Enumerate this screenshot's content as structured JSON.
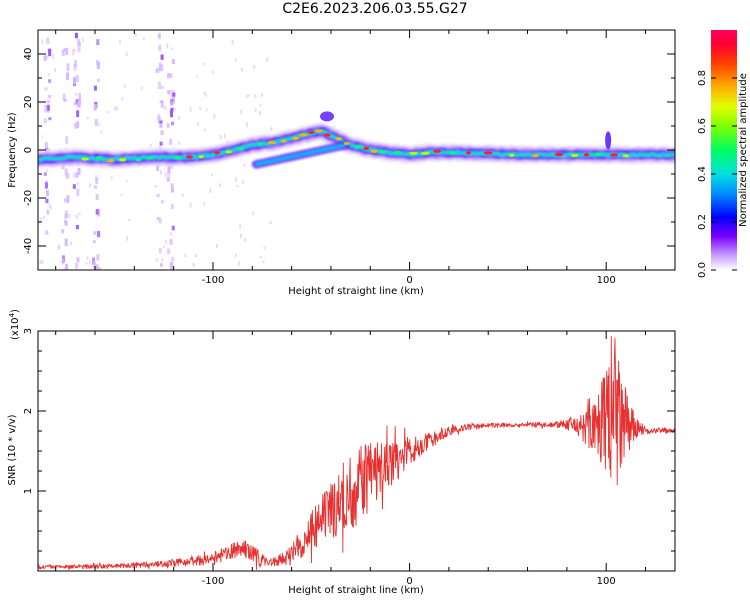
{
  "title": "C2E6.2023.206.03.55.G27",
  "chart_data": [
    {
      "type": "heatmap",
      "xlabel": "Height of straight line (km)",
      "ylabel": "Frequency (Hz)",
      "xlim": [
        -189,
        135
      ],
      "ylim": [
        -50,
        50
      ],
      "xticks": [
        -100,
        0,
        100
      ],
      "yticks": [
        -40,
        -20,
        0,
        20,
        40
      ],
      "colorbar": {
        "label": "Normalized spectral amplitude",
        "range": [
          0,
          1
        ],
        "ticks": [
          0.0,
          0.2,
          0.4,
          0.6,
          0.8
        ]
      },
      "ridge": {
        "x": [
          -189,
          -170,
          -150,
          -130,
          -110,
          -100,
          -90,
          -80,
          -70,
          -60,
          -50,
          -45,
          -40,
          -35,
          -30,
          -25,
          -20,
          -10,
          0,
          10,
          20,
          40,
          60,
          80,
          100,
          110,
          120,
          135
        ],
        "y": [
          -4,
          -3,
          -4,
          -3,
          -3,
          -2,
          0,
          2,
          3,
          5,
          7,
          8,
          6,
          4,
          2,
          1,
          0,
          -1,
          -2,
          -1,
          -1,
          -1.5,
          -2,
          -2,
          -2,
          -2,
          -2,
          -2
        ]
      }
    },
    {
      "type": "line",
      "xlabel": "Height of straight line (km)",
      "ylabel": "SNR (10 * v/v)",
      "y_multiplier": "(x10",
      "y_exponent": "4",
      "series_color": "#e83030",
      "xlim": [
        -189,
        135
      ],
      "ylim": [
        0,
        3
      ],
      "xticks": [
        -100,
        0,
        100
      ],
      "yticks": [
        1,
        2,
        3
      ],
      "envelope": {
        "x": [
          -189,
          -150,
          -120,
          -100,
          -90,
          -85,
          -80,
          -70,
          -60,
          -50,
          -40,
          -30,
          -20,
          -10,
          0,
          10,
          20,
          30,
          40,
          60,
          70,
          80,
          85,
          90,
          95,
          100,
          103,
          105,
          108,
          110,
          115,
          120,
          135
        ],
        "y": [
          0.05,
          0.06,
          0.1,
          0.15,
          0.25,
          0.3,
          0.2,
          0.1,
          0.2,
          0.5,
          0.75,
          1.0,
          1.2,
          1.35,
          1.5,
          1.62,
          1.75,
          1.8,
          1.82,
          1.83,
          1.83,
          1.83,
          1.82,
          1.8,
          1.8,
          1.85,
          1.9,
          1.9,
          1.85,
          1.82,
          1.78,
          1.76,
          1.76
        ]
      },
      "noise_amplitude": {
        "x": [
          -189,
          -120,
          -100,
          -80,
          -70,
          -60,
          -50,
          -40,
          -30,
          -20,
          -10,
          0,
          10,
          20,
          40,
          70,
          80,
          90,
          95,
          100,
          103,
          106,
          110,
          115,
          120,
          135
        ],
        "y": [
          0.02,
          0.04,
          0.08,
          0.12,
          0.05,
          0.12,
          0.25,
          0.35,
          0.5,
          0.45,
          0.3,
          0.18,
          0.1,
          0.05,
          0.03,
          0.03,
          0.06,
          0.25,
          0.35,
          0.7,
          1.2,
          0.9,
          0.45,
          0.15,
          0.04,
          0.03
        ]
      }
    }
  ]
}
